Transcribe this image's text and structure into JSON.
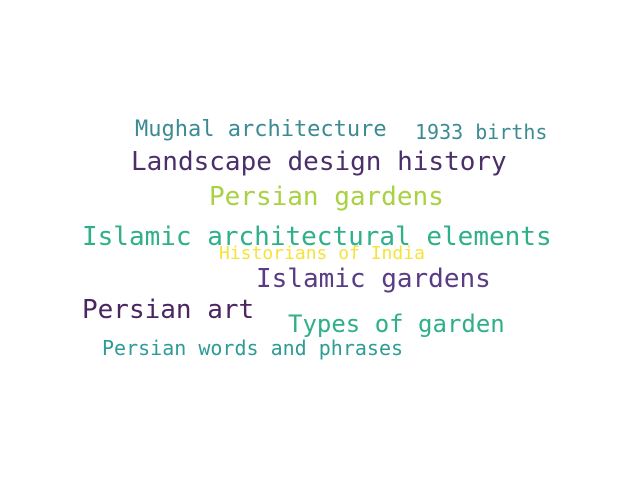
{
  "word_cloud": {
    "words": [
      {
        "text": "Mughal architecture",
        "color": "#3b8b93"
      },
      {
        "text": "1933 births",
        "color": "#3b8b93"
      },
      {
        "text": "Landscape design history",
        "color": "#4a2f6b"
      },
      {
        "text": "Persian gardens",
        "color": "#a8d244"
      },
      {
        "text": "Islamic architectural elements",
        "color": "#2fb08a"
      },
      {
        "text": "Historians of India",
        "color": "#f5e33a"
      },
      {
        "text": "Islamic gardens",
        "color": "#5a3c86"
      },
      {
        "text": "Persian art",
        "color": "#4a2560"
      },
      {
        "text": "Types of garden",
        "color": "#2fb08a"
      },
      {
        "text": "Persian words and phrases",
        "color": "#2f9b96"
      }
    ]
  }
}
